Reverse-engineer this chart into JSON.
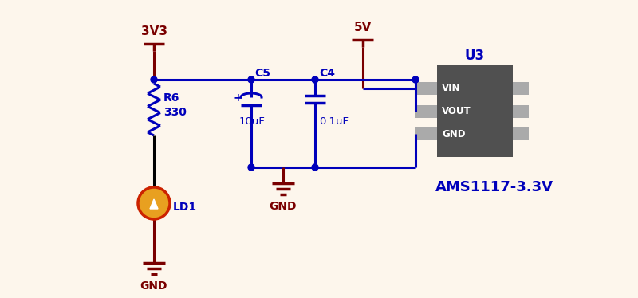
{
  "bg_color": "#fdf6ec",
  "wire_color": "#0000bb",
  "gnd_color": "#7a0000",
  "led_fill": "#e8a020",
  "led_border": "#cc2200",
  "led_symbol": "#ffffff",
  "ic_body_color": "#505050",
  "ic_pin_color": "#aaaaaa",
  "text_blue": "#0000bb",
  "text_dark_red": "#7a0000",
  "label_ams": "AMS1117-3.3V",
  "label_u3": "U3",
  "label_3v3": "3V3",
  "label_5v": "5V",
  "label_r6": "R6",
  "label_330": "330",
  "label_c5": "C5",
  "label_10uf": "10uF",
  "label_c4": "C4",
  "label_01uf": "0.1uF",
  "label_ld1": "LD1",
  "label_gnd_led": "GND",
  "label_gnd_cap": "GND",
  "label_vin": "VIN",
  "label_vout": "VOUT",
  "label_gnd_ic": "GND"
}
